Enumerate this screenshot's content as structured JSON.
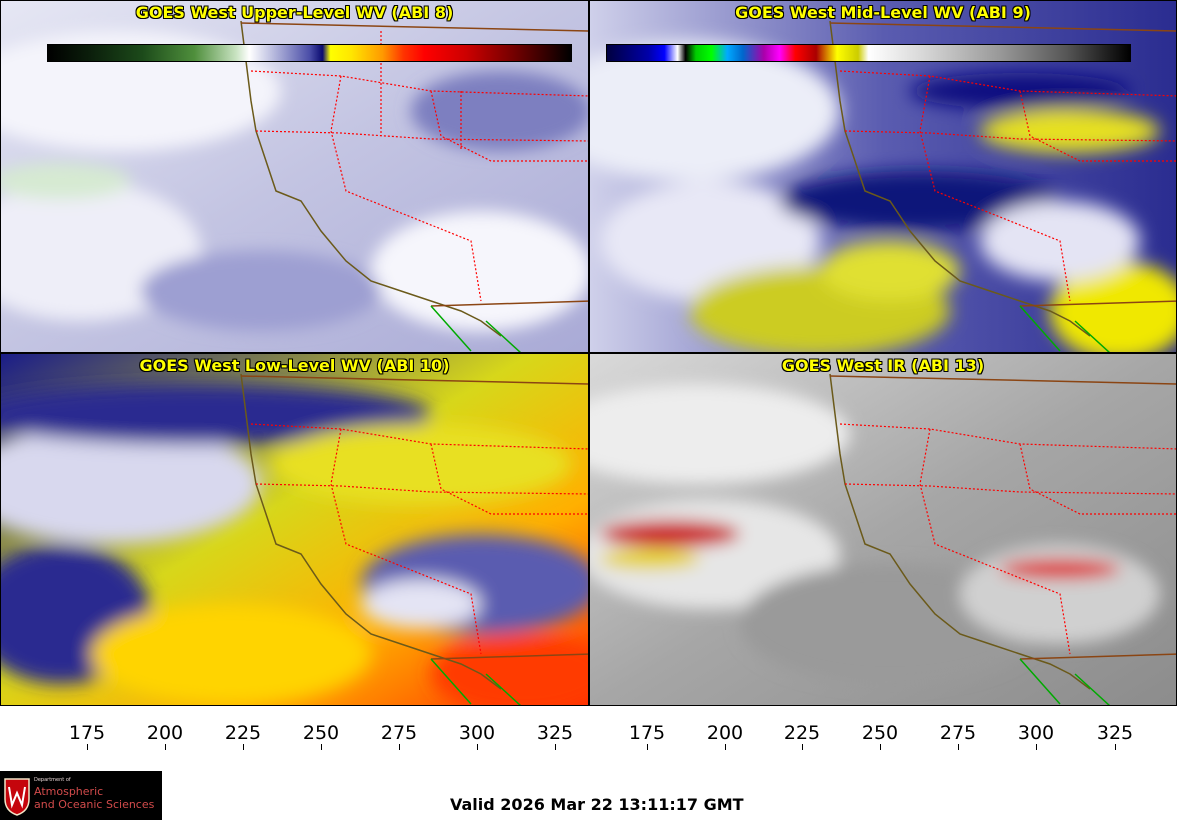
{
  "panels": [
    {
      "title": "GOES West Upper-Level WV (ABI 8)"
    },
    {
      "title": "GOES West Mid-Level WV (ABI 9)"
    },
    {
      "title": "GOES West Low-Level WV (ABI 10)"
    },
    {
      "title": "GOES West IR (ABI 13)"
    }
  ],
  "colorbars": {
    "left": {
      "ticks": [
        "175",
        "200",
        "225",
        "250",
        "275",
        "300",
        "325"
      ]
    },
    "right": {
      "ticks": [
        "175",
        "200",
        "225",
        "250",
        "275",
        "300",
        "325"
      ]
    }
  },
  "logo": {
    "dept_line": "Department of",
    "name_line1": "Atmospheric",
    "name_line2": "and Oceanic Sciences"
  },
  "valid_time": "Valid 2026 Mar 22 13:11:17 GMT",
  "colors": {
    "title_text": "#ffff00",
    "state_borders": "#ff0000",
    "coastline": "#6b5a1a",
    "international_border": "#8b4513",
    "mexico_coast": "#00aa00"
  }
}
